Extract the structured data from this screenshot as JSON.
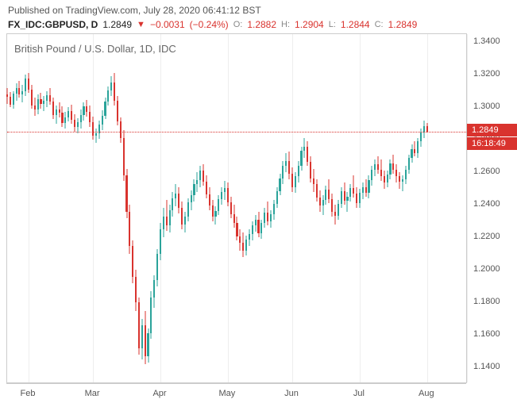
{
  "header": {
    "published": "Published on TradingView.com, July 28, 2020 06:41:12 BST"
  },
  "ticker": {
    "symbol": "FX_IDC:GBPUSD, D",
    "last": "1.2849",
    "change": "−0.0031",
    "change_pct": "(−0.24%)",
    "open_label": "O:",
    "open": "1.2882",
    "high_label": "H:",
    "high": "1.2904",
    "low_label": "L:",
    "low": "1.2844",
    "close_label": "C:",
    "close": "1.2849"
  },
  "chart": {
    "title": "British Pound / U.S. Dollar, 1D, IDC",
    "type": "candlestick",
    "background_color": "#ffffff",
    "grid_color": "#eeeeee",
    "border_color": "#cccccc",
    "up_color": "#2aa39a",
    "down_color": "#d9332e",
    "last_line_color": "#d9332e",
    "last_price": 1.2849,
    "last_price_label": "1.2849",
    "countdown_label": "16:18:49",
    "ylim": [
      1.13,
      1.345
    ],
    "yticks": [
      1.14,
      1.16,
      1.18,
      1.2,
      1.22,
      1.24,
      1.26,
      1.28,
      1.3,
      1.32,
      1.34
    ],
    "ytick_labels": [
      "1.1400",
      "1.1600",
      "1.1800",
      "1.2000",
      "1.2200",
      "1.2400",
      "1.2600",
      "1.2800",
      "1.3000",
      "1.3200",
      "1.3400"
    ],
    "xlim": [
      0,
      150
    ],
    "xticks": [
      7,
      28,
      50,
      72,
      93,
      115,
      137,
      150
    ],
    "xtick_labels": [
      "Feb",
      "Mar",
      "Apr",
      "May",
      "Jun",
      "Jul",
      "Aug",
      ""
    ],
    "candle_width_ratio": 0.55,
    "candles": [
      {
        "x": 0,
        "o": 1.308,
        "h": 1.312,
        "l": 1.302,
        "c": 1.3065
      },
      {
        "x": 1,
        "o": 1.3065,
        "h": 1.3095,
        "l": 1.3,
        "c": 1.3015
      },
      {
        "x": 2,
        "o": 1.3015,
        "h": 1.31,
        "l": 1.299,
        "c": 1.3085
      },
      {
        "x": 3,
        "o": 1.3085,
        "h": 1.315,
        "l": 1.304,
        "c": 1.312
      },
      {
        "x": 4,
        "o": 1.312,
        "h": 1.316,
        "l": 1.306,
        "c": 1.308
      },
      {
        "x": 5,
        "o": 1.308,
        "h": 1.314,
        "l": 1.303,
        "c": 1.31
      },
      {
        "x": 6,
        "o": 1.31,
        "h": 1.32,
        "l": 1.307,
        "c": 1.3175
      },
      {
        "x": 7,
        "o": 1.3175,
        "h": 1.321,
        "l": 1.309,
        "c": 1.311
      },
      {
        "x": 8,
        "o": 1.311,
        "h": 1.314,
        "l": 1.299,
        "c": 1.301
      },
      {
        "x": 9,
        "o": 1.301,
        "h": 1.306,
        "l": 1.295,
        "c": 1.2985
      },
      {
        "x": 10,
        "o": 1.2985,
        "h": 1.308,
        "l": 1.296,
        "c": 1.305
      },
      {
        "x": 11,
        "o": 1.305,
        "h": 1.309,
        "l": 1.299,
        "c": 1.302
      },
      {
        "x": 12,
        "o": 1.302,
        "h": 1.307,
        "l": 1.2975,
        "c": 1.304
      },
      {
        "x": 13,
        "o": 1.304,
        "h": 1.31,
        "l": 1.3,
        "c": 1.3075
      },
      {
        "x": 14,
        "o": 1.3075,
        "h": 1.312,
        "l": 1.3015,
        "c": 1.3035
      },
      {
        "x": 15,
        "o": 1.3035,
        "h": 1.306,
        "l": 1.293,
        "c": 1.2955
      },
      {
        "x": 16,
        "o": 1.2955,
        "h": 1.301,
        "l": 1.29,
        "c": 1.2985
      },
      {
        "x": 17,
        "o": 1.2985,
        "h": 1.303,
        "l": 1.294,
        "c": 1.2965
      },
      {
        "x": 18,
        "o": 1.2965,
        "h": 1.3005,
        "l": 1.288,
        "c": 1.2905
      },
      {
        "x": 19,
        "o": 1.2905,
        "h": 1.297,
        "l": 1.287,
        "c": 1.294
      },
      {
        "x": 20,
        "o": 1.294,
        "h": 1.3,
        "l": 1.2915,
        "c": 1.2975
      },
      {
        "x": 21,
        "o": 1.2975,
        "h": 1.3015,
        "l": 1.29,
        "c": 1.2925
      },
      {
        "x": 22,
        "o": 1.2925,
        "h": 1.296,
        "l": 1.285,
        "c": 1.288
      },
      {
        "x": 23,
        "o": 1.288,
        "h": 1.2935,
        "l": 1.284,
        "c": 1.291
      },
      {
        "x": 24,
        "o": 1.291,
        "h": 1.2985,
        "l": 1.287,
        "c": 1.2955
      },
      {
        "x": 25,
        "o": 1.2955,
        "h": 1.303,
        "l": 1.292,
        "c": 1.3005
      },
      {
        "x": 26,
        "o": 1.3005,
        "h": 1.3045,
        "l": 1.2945,
        "c": 1.297
      },
      {
        "x": 27,
        "o": 1.297,
        "h": 1.301,
        "l": 1.288,
        "c": 1.291
      },
      {
        "x": 28,
        "o": 1.291,
        "h": 1.2945,
        "l": 1.28,
        "c": 1.2825
      },
      {
        "x": 29,
        "o": 1.2825,
        "h": 1.287,
        "l": 1.278,
        "c": 1.284
      },
      {
        "x": 30,
        "o": 1.284,
        "h": 1.292,
        "l": 1.2805,
        "c": 1.2895
      },
      {
        "x": 31,
        "o": 1.2895,
        "h": 1.298,
        "l": 1.286,
        "c": 1.295
      },
      {
        "x": 32,
        "o": 1.295,
        "h": 1.306,
        "l": 1.293,
        "c": 1.3035
      },
      {
        "x": 33,
        "o": 1.3035,
        "h": 1.313,
        "l": 1.301,
        "c": 1.3105
      },
      {
        "x": 34,
        "o": 1.3105,
        "h": 1.319,
        "l": 1.307,
        "c": 1.3155
      },
      {
        "x": 35,
        "o": 1.3155,
        "h": 1.321,
        "l": 1.301,
        "c": 1.304
      },
      {
        "x": 36,
        "o": 1.304,
        "h": 1.307,
        "l": 1.289,
        "c": 1.2915
      },
      {
        "x": 37,
        "o": 1.2915,
        "h": 1.294,
        "l": 1.278,
        "c": 1.281
      },
      {
        "x": 38,
        "o": 1.281,
        "h": 1.286,
        "l": 1.255,
        "c": 1.258
      },
      {
        "x": 39,
        "o": 1.258,
        "h": 1.262,
        "l": 1.232,
        "c": 1.236
      },
      {
        "x": 40,
        "o": 1.236,
        "h": 1.24,
        "l": 1.21,
        "c": 1.215
      },
      {
        "x": 41,
        "o": 1.215,
        "h": 1.218,
        "l": 1.192,
        "c": 1.196
      },
      {
        "x": 42,
        "o": 1.196,
        "h": 1.2,
        "l": 1.175,
        "c": 1.18
      },
      {
        "x": 43,
        "o": 1.18,
        "h": 1.183,
        "l": 1.148,
        "c": 1.152
      },
      {
        "x": 44,
        "o": 1.152,
        "h": 1.17,
        "l": 1.145,
        "c": 1.166
      },
      {
        "x": 45,
        "o": 1.166,
        "h": 1.175,
        "l": 1.142,
        "c": 1.147
      },
      {
        "x": 46,
        "o": 1.147,
        "h": 1.164,
        "l": 1.143,
        "c": 1.161
      },
      {
        "x": 47,
        "o": 1.161,
        "h": 1.187,
        "l": 1.158,
        "c": 1.183
      },
      {
        "x": 48,
        "o": 1.183,
        "h": 1.197,
        "l": 1.177,
        "c": 1.194
      },
      {
        "x": 49,
        "o": 1.194,
        "h": 1.213,
        "l": 1.19,
        "c": 1.21
      },
      {
        "x": 50,
        "o": 1.21,
        "h": 1.229,
        "l": 1.206,
        "c": 1.225
      },
      {
        "x": 51,
        "o": 1.225,
        "h": 1.238,
        "l": 1.22,
        "c": 1.233
      },
      {
        "x": 52,
        "o": 1.233,
        "h": 1.243,
        "l": 1.224,
        "c": 1.2275
      },
      {
        "x": 53,
        "o": 1.2275,
        "h": 1.24,
        "l": 1.223,
        "c": 1.237
      },
      {
        "x": 54,
        "o": 1.237,
        "h": 1.248,
        "l": 1.233,
        "c": 1.244
      },
      {
        "x": 55,
        "o": 1.244,
        "h": 1.253,
        "l": 1.239,
        "c": 1.247
      },
      {
        "x": 56,
        "o": 1.247,
        "h": 1.251,
        "l": 1.235,
        "c": 1.238
      },
      {
        "x": 57,
        "o": 1.238,
        "h": 1.242,
        "l": 1.225,
        "c": 1.228
      },
      {
        "x": 58,
        "o": 1.228,
        "h": 1.236,
        "l": 1.223,
        "c": 1.233
      },
      {
        "x": 59,
        "o": 1.233,
        "h": 1.244,
        "l": 1.23,
        "c": 1.2415
      },
      {
        "x": 60,
        "o": 1.2415,
        "h": 1.249,
        "l": 1.237,
        "c": 1.246
      },
      {
        "x": 61,
        "o": 1.246,
        "h": 1.256,
        "l": 1.242,
        "c": 1.253
      },
      {
        "x": 62,
        "o": 1.253,
        "h": 1.26,
        "l": 1.248,
        "c": 1.2555
      },
      {
        "x": 63,
        "o": 1.2555,
        "h": 1.264,
        "l": 1.251,
        "c": 1.261
      },
      {
        "x": 64,
        "o": 1.261,
        "h": 1.265,
        "l": 1.252,
        "c": 1.2545
      },
      {
        "x": 65,
        "o": 1.2545,
        "h": 1.258,
        "l": 1.244,
        "c": 1.2465
      },
      {
        "x": 66,
        "o": 1.2465,
        "h": 1.251,
        "l": 1.237,
        "c": 1.2395
      },
      {
        "x": 67,
        "o": 1.2395,
        "h": 1.243,
        "l": 1.23,
        "c": 1.233
      },
      {
        "x": 68,
        "o": 1.233,
        "h": 1.239,
        "l": 1.228,
        "c": 1.2365
      },
      {
        "x": 69,
        "o": 1.2365,
        "h": 1.246,
        "l": 1.234,
        "c": 1.2435
      },
      {
        "x": 70,
        "o": 1.2435,
        "h": 1.251,
        "l": 1.24,
        "c": 1.248
      },
      {
        "x": 71,
        "o": 1.248,
        "h": 1.255,
        "l": 1.243,
        "c": 1.2505
      },
      {
        "x": 72,
        "o": 1.2505,
        "h": 1.254,
        "l": 1.239,
        "c": 1.2415
      },
      {
        "x": 73,
        "o": 1.2415,
        "h": 1.245,
        "l": 1.232,
        "c": 1.2345
      },
      {
        "x": 74,
        "o": 1.2345,
        "h": 1.24,
        "l": 1.226,
        "c": 1.229
      },
      {
        "x": 75,
        "o": 1.229,
        "h": 1.233,
        "l": 1.218,
        "c": 1.2205
      },
      {
        "x": 76,
        "o": 1.2205,
        "h": 1.225,
        "l": 1.212,
        "c": 1.217
      },
      {
        "x": 77,
        "o": 1.217,
        "h": 1.223,
        "l": 1.208,
        "c": 1.212
      },
      {
        "x": 78,
        "o": 1.212,
        "h": 1.221,
        "l": 1.209,
        "c": 1.2185
      },
      {
        "x": 79,
        "o": 1.2185,
        "h": 1.225,
        "l": 1.215,
        "c": 1.222
      },
      {
        "x": 80,
        "o": 1.222,
        "h": 1.23,
        "l": 1.218,
        "c": 1.2275
      },
      {
        "x": 81,
        "o": 1.2275,
        "h": 1.234,
        "l": 1.2235,
        "c": 1.231
      },
      {
        "x": 82,
        "o": 1.231,
        "h": 1.236,
        "l": 1.22,
        "c": 1.2225
      },
      {
        "x": 83,
        "o": 1.2225,
        "h": 1.231,
        "l": 1.219,
        "c": 1.229
      },
      {
        "x": 84,
        "o": 1.229,
        "h": 1.238,
        "l": 1.226,
        "c": 1.2355
      },
      {
        "x": 85,
        "o": 1.2355,
        "h": 1.242,
        "l": 1.2275,
        "c": 1.23
      },
      {
        "x": 86,
        "o": 1.23,
        "h": 1.237,
        "l": 1.226,
        "c": 1.2345
      },
      {
        "x": 87,
        "o": 1.2345,
        "h": 1.243,
        "l": 1.231,
        "c": 1.2405
      },
      {
        "x": 88,
        "o": 1.2405,
        "h": 1.251,
        "l": 1.238,
        "c": 1.2485
      },
      {
        "x": 89,
        "o": 1.2485,
        "h": 1.259,
        "l": 1.246,
        "c": 1.2565
      },
      {
        "x": 90,
        "o": 1.2565,
        "h": 1.267,
        "l": 1.253,
        "c": 1.264
      },
      {
        "x": 91,
        "o": 1.264,
        "h": 1.272,
        "l": 1.26,
        "c": 1.267
      },
      {
        "x": 92,
        "o": 1.267,
        "h": 1.273,
        "l": 1.256,
        "c": 1.259
      },
      {
        "x": 93,
        "o": 1.259,
        "h": 1.263,
        "l": 1.248,
        "c": 1.251
      },
      {
        "x": 94,
        "o": 1.251,
        "h": 1.26,
        "l": 1.2475,
        "c": 1.2575
      },
      {
        "x": 95,
        "o": 1.2575,
        "h": 1.267,
        "l": 1.254,
        "c": 1.264
      },
      {
        "x": 96,
        "o": 1.264,
        "h": 1.276,
        "l": 1.261,
        "c": 1.2735
      },
      {
        "x": 97,
        "o": 1.2735,
        "h": 1.281,
        "l": 1.269,
        "c": 1.276
      },
      {
        "x": 98,
        "o": 1.276,
        "h": 1.279,
        "l": 1.264,
        "c": 1.2665
      },
      {
        "x": 99,
        "o": 1.2665,
        "h": 1.27,
        "l": 1.254,
        "c": 1.2565
      },
      {
        "x": 100,
        "o": 1.2565,
        "h": 1.262,
        "l": 1.248,
        "c": 1.253
      },
      {
        "x": 101,
        "o": 1.253,
        "h": 1.256,
        "l": 1.242,
        "c": 1.2445
      },
      {
        "x": 102,
        "o": 1.2445,
        "h": 1.249,
        "l": 1.236,
        "c": 1.2395
      },
      {
        "x": 103,
        "o": 1.2395,
        "h": 1.246,
        "l": 1.234,
        "c": 1.243
      },
      {
        "x": 104,
        "o": 1.243,
        "h": 1.252,
        "l": 1.24,
        "c": 1.2495
      },
      {
        "x": 105,
        "o": 1.2495,
        "h": 1.256,
        "l": 1.241,
        "c": 1.2435
      },
      {
        "x": 106,
        "o": 1.2435,
        "h": 1.247,
        "l": 1.233,
        "c": 1.236
      },
      {
        "x": 107,
        "o": 1.236,
        "h": 1.24,
        "l": 1.228,
        "c": 1.2335
      },
      {
        "x": 108,
        "o": 1.2335,
        "h": 1.243,
        "l": 1.231,
        "c": 1.2405
      },
      {
        "x": 109,
        "o": 1.2405,
        "h": 1.251,
        "l": 1.238,
        "c": 1.2485
      },
      {
        "x": 110,
        "o": 1.2485,
        "h": 1.254,
        "l": 1.24,
        "c": 1.2425
      },
      {
        "x": 111,
        "o": 1.2425,
        "h": 1.248,
        "l": 1.236,
        "c": 1.245
      },
      {
        "x": 112,
        "o": 1.245,
        "h": 1.253,
        "l": 1.242,
        "c": 1.2505
      },
      {
        "x": 113,
        "o": 1.2505,
        "h": 1.258,
        "l": 1.2445,
        "c": 1.247
      },
      {
        "x": 114,
        "o": 1.247,
        "h": 1.251,
        "l": 1.238,
        "c": 1.241
      },
      {
        "x": 115,
        "o": 1.241,
        "h": 1.25,
        "l": 1.238,
        "c": 1.2475
      },
      {
        "x": 116,
        "o": 1.2475,
        "h": 1.254,
        "l": 1.2435,
        "c": 1.251
      },
      {
        "x": 117,
        "o": 1.251,
        "h": 1.256,
        "l": 1.245,
        "c": 1.2475
      },
      {
        "x": 118,
        "o": 1.2475,
        "h": 1.258,
        "l": 1.244,
        "c": 1.2555
      },
      {
        "x": 119,
        "o": 1.2555,
        "h": 1.264,
        "l": 1.252,
        "c": 1.2615
      },
      {
        "x": 120,
        "o": 1.2615,
        "h": 1.268,
        "l": 1.2575,
        "c": 1.265
      },
      {
        "x": 121,
        "o": 1.265,
        "h": 1.27,
        "l": 1.259,
        "c": 1.2615
      },
      {
        "x": 122,
        "o": 1.2615,
        "h": 1.268,
        "l": 1.255,
        "c": 1.2575
      },
      {
        "x": 123,
        "o": 1.2575,
        "h": 1.261,
        "l": 1.25,
        "c": 1.254
      },
      {
        "x": 124,
        "o": 1.254,
        "h": 1.261,
        "l": 1.251,
        "c": 1.2585
      },
      {
        "x": 125,
        "o": 1.2585,
        "h": 1.268,
        "l": 1.256,
        "c": 1.2655
      },
      {
        "x": 126,
        "o": 1.2655,
        "h": 1.271,
        "l": 1.259,
        "c": 1.2615
      },
      {
        "x": 127,
        "o": 1.2615,
        "h": 1.265,
        "l": 1.254,
        "c": 1.2575
      },
      {
        "x": 128,
        "o": 1.2575,
        "h": 1.26,
        "l": 1.25,
        "c": 1.2545
      },
      {
        "x": 129,
        "o": 1.2545,
        "h": 1.258,
        "l": 1.2485,
        "c": 1.256
      },
      {
        "x": 130,
        "o": 1.256,
        "h": 1.264,
        "l": 1.253,
        "c": 1.2615
      },
      {
        "x": 131,
        "o": 1.2615,
        "h": 1.271,
        "l": 1.259,
        "c": 1.269
      },
      {
        "x": 132,
        "o": 1.269,
        "h": 1.277,
        "l": 1.266,
        "c": 1.2745
      },
      {
        "x": 133,
        "o": 1.2745,
        "h": 1.279,
        "l": 1.27,
        "c": 1.272
      },
      {
        "x": 134,
        "o": 1.272,
        "h": 1.281,
        "l": 1.269,
        "c": 1.279
      },
      {
        "x": 135,
        "o": 1.279,
        "h": 1.287,
        "l": 1.276,
        "c": 1.2845
      },
      {
        "x": 136,
        "o": 1.2845,
        "h": 1.292,
        "l": 1.281,
        "c": 1.2882
      },
      {
        "x": 137,
        "o": 1.2882,
        "h": 1.2904,
        "l": 1.2844,
        "c": 1.2849
      }
    ]
  }
}
